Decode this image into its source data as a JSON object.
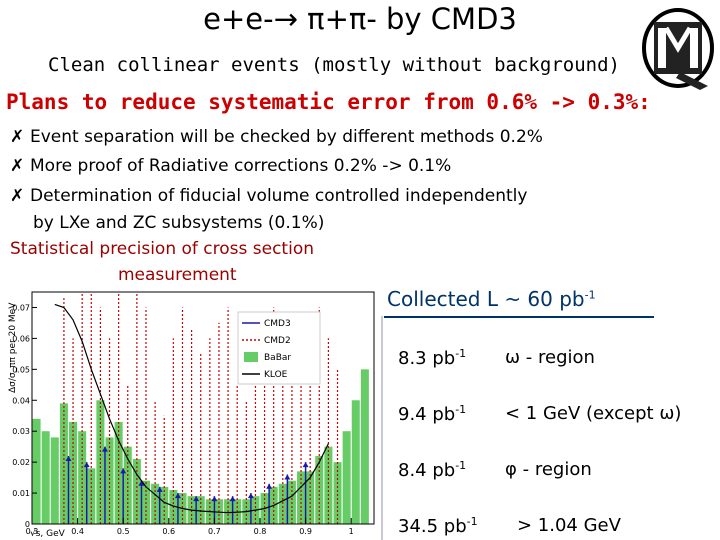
{
  "header": {
    "title": "e+e-→ π+π- by CMD3",
    "subtitle": "Clean collinear events (mostly without background)"
  },
  "plans": {
    "heading": "Plans to reduce systematic error from 0.6% -> 0.3%:",
    "bullet_mark": "✗",
    "items": [
      "Event separation will be checked by different methods 0.2%",
      "More proof of Radiative corrections 0.2% -> 0.1%",
      "Determination of fiducial volume controlled independently"
    ],
    "item3_continued": "by LXe and ZC subsystems (0.1%)",
    "statistical_line1": "Statistical precision of cross section",
    "statistical_line2": "measurement"
  },
  "luminosity": {
    "heading": "Collected L ~ 60 pb",
    "heading_sup": "-1",
    "rows": [
      {
        "value": "8.3 pb",
        "sup": "-1",
        "region": "ω - region"
      },
      {
        "value": "9.4 pb",
        "sup": "-1",
        "region": "< 1 GeV (except ω)"
      },
      {
        "value": "8.4 pb",
        "sup": "-1",
        "region": "φ - region"
      },
      {
        "value": "34.5 pb",
        "sup": "-1",
        "region": "> 1.04 GeV"
      }
    ]
  },
  "logo": {
    "text": "CMD"
  },
  "chart_data": {
    "type": "bar",
    "ylabel": "Δσ/σ_ππ per 20 MeV",
    "xlabel": "√s, GeV",
    "xlim": [
      0.3,
      1.05
    ],
    "ylim": [
      0,
      0.075
    ],
    "x_ticks": [
      "0.3",
      "0.4",
      "0.5",
      "0.6",
      "0.7",
      "0.8",
      "0.9",
      "1"
    ],
    "y_ticks": [
      "0",
      "0.01",
      "0.02",
      "0.03",
      "0.04",
      "0.05",
      "0.06",
      "0.07"
    ],
    "legend": [
      "CMD3",
      "CMD2",
      "BaBar",
      "KLOE"
    ],
    "legend_position": "top-right",
    "colors": {
      "CMD3": "#1a1aaa",
      "CMD2": "#cc0000",
      "BaBar": "#33bb33",
      "KLOE": "#000000"
    },
    "kloe_x": [
      0.35,
      0.37,
      0.39,
      0.41,
      0.43,
      0.45,
      0.47,
      0.49,
      0.51,
      0.53,
      0.55,
      0.57,
      0.59,
      0.61,
      0.63,
      0.65,
      0.67,
      0.69,
      0.71,
      0.73,
      0.75,
      0.77,
      0.79,
      0.81,
      0.83,
      0.85,
      0.87,
      0.89,
      0.91,
      0.93,
      0.95
    ],
    "kloe_y": [
      0.071,
      0.07,
      0.066,
      0.059,
      0.05,
      0.042,
      0.034,
      0.027,
      0.021,
      0.016,
      0.012,
      0.0095,
      0.007,
      0.0058,
      0.005,
      0.0045,
      0.0042,
      0.004,
      0.0038,
      0.0037,
      0.0038,
      0.004,
      0.0045,
      0.005,
      0.006,
      0.0075,
      0.009,
      0.012,
      0.015,
      0.02,
      0.026
    ],
    "babar_x": [
      0.31,
      0.33,
      0.35,
      0.37,
      0.39,
      0.41,
      0.43,
      0.45,
      0.47,
      0.49,
      0.51,
      0.53,
      0.55,
      0.57,
      0.59,
      0.61,
      0.63,
      0.65,
      0.67,
      0.69,
      0.71,
      0.73,
      0.75,
      0.77,
      0.79,
      0.81,
      0.83,
      0.85,
      0.87,
      0.89,
      0.91,
      0.93,
      0.95,
      0.97,
      0.99,
      1.01,
      1.03
    ],
    "babar_y": [
      0.034,
      0.03,
      0.028,
      0.039,
      0.033,
      0.03,
      0.018,
      0.04,
      0.028,
      0.033,
      0.025,
      0.021,
      0.014,
      0.013,
      0.012,
      0.011,
      0.01,
      0.009,
      0.009,
      0.008,
      0.008,
      0.008,
      0.008,
      0.008,
      0.009,
      0.01,
      0.012,
      0.013,
      0.014,
      0.017,
      0.017,
      0.022,
      0.025,
      0.02,
      0.03,
      0.04,
      0.05
    ],
    "cmd2_x": [
      0.37,
      0.39,
      0.41,
      0.43,
      0.45,
      0.47,
      0.49,
      0.51,
      0.53,
      0.55,
      0.57,
      0.59,
      0.61,
      0.63,
      0.65,
      0.67,
      0.69,
      0.71,
      0.73,
      0.75,
      0.77,
      0.79,
      0.81,
      0.83,
      0.85,
      0.87,
      0.89,
      0.91,
      0.93,
      0.95,
      0.97
    ],
    "cmd2_y": [
      0.073,
      0.06,
      0.075,
      0.075,
      0.07,
      0.06,
      0.075,
      0.045,
      0.075,
      0.07,
      0.04,
      0.035,
      0.06,
      0.07,
      0.063,
      0.055,
      0.06,
      0.065,
      0.07,
      0.045,
      0.04,
      0.06,
      0.065,
      0.07,
      0.06,
      0.055,
      0.05,
      0.06,
      0.07,
      0.06,
      0.05
    ],
    "cmd3_x": [
      0.38,
      0.42,
      0.46,
      0.5,
      0.54,
      0.58,
      0.62,
      0.66,
      0.7,
      0.74,
      0.78,
      0.82,
      0.86,
      0.9
    ],
    "cmd3_y": [
      0.022,
      0.02,
      0.025,
      0.018,
      0.014,
      0.012,
      0.01,
      0.009,
      0.009,
      0.009,
      0.01,
      0.013,
      0.016,
      0.02
    ]
  }
}
